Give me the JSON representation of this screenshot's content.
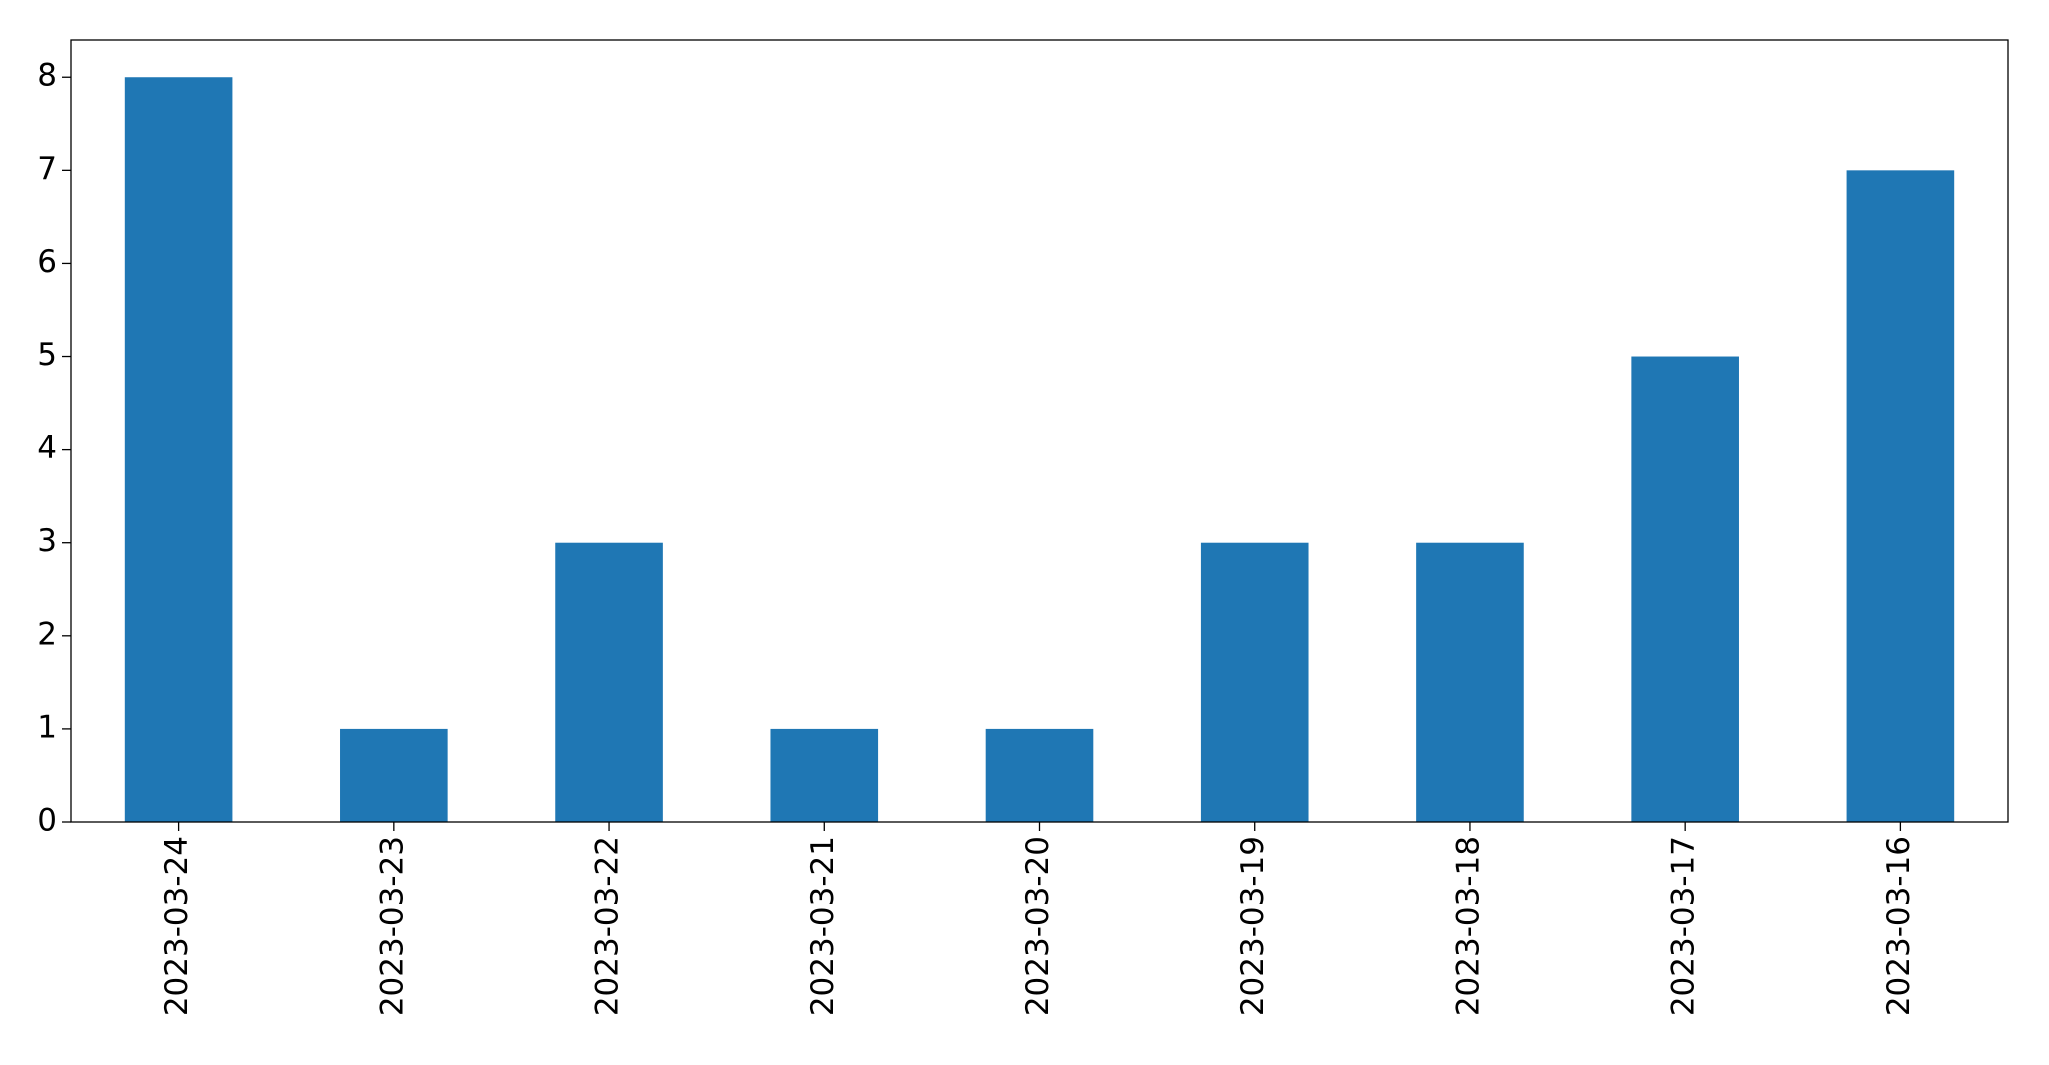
{
  "chart_data": {
    "type": "bar",
    "categories": [
      "2023-03-24",
      "2023-03-23",
      "2023-03-22",
      "2023-03-21",
      "2023-03-20",
      "2023-03-19",
      "2023-03-18",
      "2023-03-17",
      "2023-03-16"
    ],
    "values": [
      8,
      1,
      3,
      1,
      1,
      3,
      3,
      5,
      7
    ],
    "color": "#1f77b4",
    "ylim": [
      0,
      8.4
    ],
    "yticks": [
      0,
      1,
      2,
      3,
      4,
      5,
      6,
      7,
      8
    ],
    "grid": false
  }
}
